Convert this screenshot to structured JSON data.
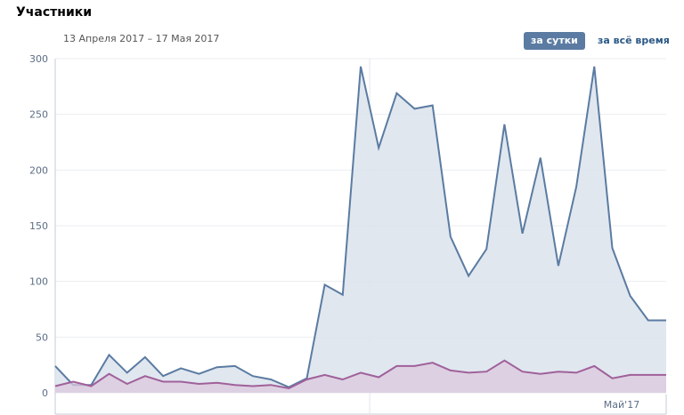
{
  "header": {
    "title": "Участники",
    "date_range": "13 Апреля 2017 – 17 Мая 2017",
    "btn_daily": "за сутки",
    "btn_all": "за всё время"
  },
  "colors": {
    "series_blue": "#5b7ba2",
    "series_blue_fill": "#dbe3ec",
    "series_purple": "#a0609a",
    "series_purple_fill": "#dcc8de",
    "grid": "#ebedf0",
    "axis_text": "#5c6e86",
    "button_active": "#5b7ba2"
  },
  "chart_data": {
    "type": "area",
    "x": [
      "13.04",
      "14.04",
      "15.04",
      "16.04",
      "17.04",
      "18.04",
      "19.04",
      "20.04",
      "21.04",
      "22.04",
      "23.04",
      "24.04",
      "25.04",
      "26.04",
      "27.04",
      "28.04",
      "29.04",
      "30.04",
      "01.05",
      "02.05",
      "03.05",
      "04.05",
      "05.05",
      "06.05",
      "07.05",
      "08.05",
      "09.05",
      "10.05",
      "11.05",
      "12.05",
      "13.05",
      "14.05",
      "15.05",
      "16.05",
      "17.05"
    ],
    "x_tick_labels": [
      "Май'17"
    ],
    "y_ticks": [
      0,
      50,
      100,
      150,
      200,
      250,
      300
    ],
    "ylim": [
      0,
      300
    ],
    "grid": true,
    "series": [
      {
        "values": [
          24,
          7,
          7,
          34,
          18,
          32,
          15,
          22,
          17,
          23,
          24,
          15,
          12,
          5,
          13,
          97,
          88,
          293,
          220,
          269,
          255,
          258,
          140,
          105,
          129,
          241,
          143,
          211,
          114,
          185,
          293,
          130,
          87,
          65,
          null
        ]
      },
      {
        "values": [
          6,
          10,
          6,
          17,
          8,
          15,
          10,
          10,
          8,
          9,
          7,
          6,
          7,
          4,
          12,
          16,
          12,
          18,
          14,
          24,
          24,
          27,
          20,
          18,
          19,
          29,
          19,
          17,
          19,
          18,
          24,
          13,
          16,
          16,
          null
        ]
      }
    ]
  }
}
